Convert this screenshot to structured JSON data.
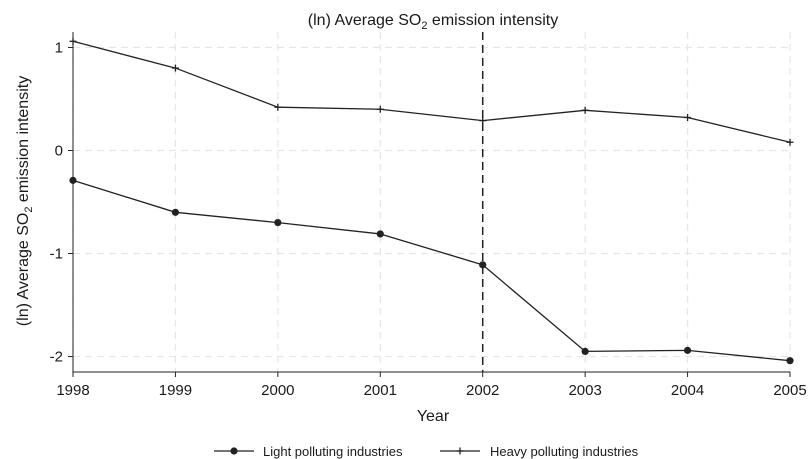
{
  "chart_data": {
    "type": "line",
    "title": "(ln) Average SO₂ emission intensity",
    "xlabel": "Year",
    "ylabel": "(ln) Average SO₂ emission intensity",
    "categories": [
      "1998",
      "1999",
      "2000",
      "2001",
      "2002",
      "2003",
      "2004",
      "2005"
    ],
    "x": [
      1998,
      1999,
      2000,
      2001,
      2002,
      2003,
      2004,
      2005
    ],
    "xlim": [
      1998,
      2005
    ],
    "ylim": [
      -2.15,
      1.15
    ],
    "yticks": [
      1,
      0,
      -1,
      -2
    ],
    "ytick_labels": [
      "1",
      "0",
      "-1",
      "-2"
    ],
    "grid": true,
    "reference_line_x": 2002,
    "legend_position": "bottom",
    "series": [
      {
        "name": "Light polluting industries",
        "marker": "circle",
        "color": "#222222",
        "values": [
          -0.29,
          -0.6,
          -0.7,
          -0.81,
          -1.11,
          -1.95,
          -1.94,
          -2.04
        ]
      },
      {
        "name": "Heavy polluting industries",
        "marker": "plus",
        "color": "#222222",
        "values": [
          1.06,
          0.8,
          0.42,
          0.4,
          0.29,
          0.39,
          0.32,
          0.08
        ]
      }
    ]
  }
}
